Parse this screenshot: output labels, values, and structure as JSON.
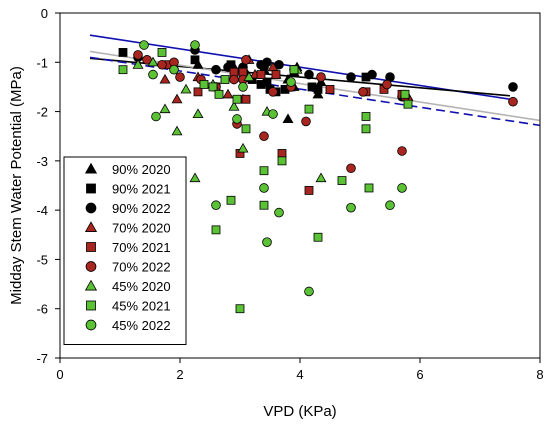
{
  "chart_data": {
    "type": "scatter",
    "xlabel": "VPD (KPa)",
    "ylabel": "Midday Stem Water Potential (MPa)",
    "xlim": [
      0,
      8
    ],
    "ylim": [
      -7,
      0
    ],
    "xticks": [
      0,
      2,
      4,
      6,
      8
    ],
    "yticks": [
      0,
      -1,
      -2,
      -3,
      -4,
      -5,
      -6,
      -7
    ],
    "grid": false,
    "legend_position": "bottom-left",
    "series": [
      {
        "name": "90% 2020",
        "marker": "triangle",
        "color": "#000000",
        "points": [
          [
            2.3,
            -1.05
          ],
          [
            2.9,
            -1.1
          ],
          [
            3.0,
            -1.15
          ],
          [
            3.1,
            -1.2
          ],
          [
            3.4,
            -1.15
          ],
          [
            3.6,
            -1.25
          ],
          [
            3.8,
            -1.35
          ],
          [
            3.9,
            -1.2
          ],
          [
            3.9,
            -1.5
          ],
          [
            3.95,
            -1.1
          ],
          [
            4.3,
            -1.65
          ],
          [
            4.35,
            -1.4
          ],
          [
            3.8,
            -2.15
          ]
        ]
      },
      {
        "name": "90% 2021",
        "marker": "square",
        "color": "#000000",
        "points": [
          [
            1.05,
            -0.8
          ],
          [
            2.25,
            -0.95
          ],
          [
            2.85,
            -1.05
          ],
          [
            3.2,
            -1.35
          ],
          [
            3.35,
            -1.45
          ],
          [
            3.45,
            -1.4
          ],
          [
            3.5,
            -1.55
          ],
          [
            3.6,
            -1.6
          ],
          [
            3.75,
            -1.55
          ],
          [
            3.85,
            -1.5
          ],
          [
            4.2,
            -1.5
          ],
          [
            4.3,
            -1.55
          ],
          [
            5.1,
            -1.3
          ]
        ]
      },
      {
        "name": "90% 2022",
        "marker": "circle",
        "color": "#000000",
        "points": [
          [
            1.3,
            -0.9
          ],
          [
            2.25,
            -0.75
          ],
          [
            2.6,
            -1.15
          ],
          [
            2.8,
            -1.1
          ],
          [
            3.05,
            -1.1
          ],
          [
            3.35,
            -1.05
          ],
          [
            3.4,
            -1.1
          ],
          [
            3.45,
            -1.0
          ],
          [
            3.65,
            -1.05
          ],
          [
            3.9,
            -1.15
          ],
          [
            4.15,
            -1.25
          ],
          [
            4.85,
            -1.3
          ],
          [
            5.2,
            -1.25
          ],
          [
            5.5,
            -1.3
          ],
          [
            5.7,
            -1.7
          ],
          [
            7.55,
            -1.5
          ]
        ]
      },
      {
        "name": "70% 2020",
        "marker": "triangle",
        "color": "#a8261f",
        "points": [
          [
            1.75,
            -1.35
          ],
          [
            1.95,
            -1.75
          ],
          [
            2.3,
            -1.3
          ],
          [
            2.8,
            -1.65
          ],
          [
            3.05,
            -1.75
          ],
          [
            3.15,
            -0.95
          ],
          [
            3.25,
            -1.25
          ],
          [
            3.55,
            -1.1
          ],
          [
            5.8,
            -1.7
          ]
        ]
      },
      {
        "name": "70% 2021",
        "marker": "square",
        "color": "#a8261f",
        "points": [
          [
            1.8,
            -1.05
          ],
          [
            2.3,
            -1.6
          ],
          [
            2.6,
            -1.5
          ],
          [
            2.9,
            -1.2
          ],
          [
            3.0,
            -2.85
          ],
          [
            3.05,
            -1.2
          ],
          [
            3.1,
            -1.75
          ],
          [
            3.35,
            -1.25
          ],
          [
            3.6,
            -1.25
          ],
          [
            3.7,
            -2.85
          ],
          [
            4.15,
            -3.6
          ],
          [
            4.5,
            -1.55
          ],
          [
            5.1,
            -1.6
          ],
          [
            5.4,
            -1.55
          ],
          [
            5.7,
            -1.65
          ]
        ]
      },
      {
        "name": "70% 2022",
        "marker": "circle",
        "color": "#a8261f",
        "points": [
          [
            1.3,
            -0.85
          ],
          [
            1.45,
            -0.95
          ],
          [
            1.7,
            -1.05
          ],
          [
            1.9,
            -1.0
          ],
          [
            2.0,
            -1.3
          ],
          [
            2.35,
            -1.35
          ],
          [
            2.6,
            -1.5
          ],
          [
            2.9,
            -1.35
          ],
          [
            2.95,
            -2.25
          ],
          [
            3.05,
            -1.35
          ],
          [
            3.1,
            -0.95
          ],
          [
            3.4,
            -2.5
          ],
          [
            3.55,
            -1.6
          ],
          [
            3.85,
            -1.5
          ],
          [
            4.1,
            -2.2
          ],
          [
            4.35,
            -1.3
          ],
          [
            4.85,
            -3.15
          ],
          [
            5.05,
            -1.6
          ],
          [
            5.45,
            -1.45
          ],
          [
            5.7,
            -2.8
          ],
          [
            5.75,
            -1.7
          ],
          [
            7.55,
            -1.8
          ]
        ]
      },
      {
        "name": "45% 2020",
        "marker": "triangle",
        "color": "#5bc236",
        "points": [
          [
            1.3,
            -1.05
          ],
          [
            1.55,
            -1.0
          ],
          [
            1.75,
            -1.95
          ],
          [
            1.95,
            -2.4
          ],
          [
            2.1,
            -1.55
          ],
          [
            2.25,
            -3.35
          ],
          [
            2.3,
            -2.05
          ],
          [
            2.55,
            -1.45
          ],
          [
            2.9,
            -1.9
          ],
          [
            3.05,
            -2.75
          ],
          [
            3.15,
            -1.3
          ],
          [
            3.45,
            -2.0
          ],
          [
            3.95,
            -1.15
          ],
          [
            4.35,
            -3.35
          ]
        ]
      },
      {
        "name": "45% 2021",
        "marker": "square",
        "color": "#5bc236",
        "points": [
          [
            1.05,
            -1.15
          ],
          [
            1.7,
            -0.8
          ],
          [
            2.4,
            -1.45
          ],
          [
            2.55,
            -1.5
          ],
          [
            2.65,
            -1.65
          ],
          [
            2.6,
            -4.4
          ],
          [
            2.75,
            -1.35
          ],
          [
            2.85,
            -3.8
          ],
          [
            2.95,
            -1.75
          ],
          [
            3.0,
            -6.0
          ],
          [
            3.1,
            -2.35
          ],
          [
            3.4,
            -3.2
          ],
          [
            3.4,
            -3.9
          ],
          [
            3.7,
            -3.0
          ],
          [
            3.9,
            -1.15
          ],
          [
            4.15,
            -1.95
          ],
          [
            4.3,
            -4.55
          ],
          [
            4.7,
            -3.4
          ],
          [
            5.1,
            -2.1
          ],
          [
            5.1,
            -2.35
          ],
          [
            5.15,
            -3.55
          ],
          [
            5.75,
            -1.65
          ],
          [
            5.8,
            -1.85
          ]
        ]
      },
      {
        "name": "45% 2022",
        "marker": "circle",
        "color": "#5bc236",
        "points": [
          [
            1.4,
            -0.65
          ],
          [
            1.55,
            -1.25
          ],
          [
            1.6,
            -2.1
          ],
          [
            1.9,
            -1.15
          ],
          [
            2.25,
            -0.65
          ],
          [
            2.6,
            -3.9
          ],
          [
            2.95,
            -2.15
          ],
          [
            3.05,
            -1.5
          ],
          [
            3.4,
            -3.55
          ],
          [
            3.45,
            -4.65
          ],
          [
            3.55,
            -2.05
          ],
          [
            3.65,
            -4.05
          ],
          [
            3.85,
            -1.4
          ],
          [
            4.15,
            -5.65
          ],
          [
            4.85,
            -3.95
          ],
          [
            5.5,
            -3.9
          ],
          [
            5.7,
            -3.55
          ]
        ]
      }
    ],
    "fit_lines": [
      {
        "color": "#1010b0",
        "style": "solid",
        "x": [
          0.5,
          7.5
        ],
        "y": [
          -0.45,
          -1.75
        ]
      },
      {
        "color": "#000000",
        "style": "solid",
        "x": [
          0.5,
          7.5
        ],
        "y": [
          -0.92,
          -1.68
        ]
      },
      {
        "color": "#b4b4b4",
        "style": "solid",
        "x": [
          0.5,
          8.0
        ],
        "y": [
          -0.78,
          -2.18
        ]
      },
      {
        "color": "#1010b0",
        "style": "dashed",
        "x": [
          0.5,
          8.0
        ],
        "y": [
          -0.9,
          -2.28
        ]
      }
    ]
  }
}
